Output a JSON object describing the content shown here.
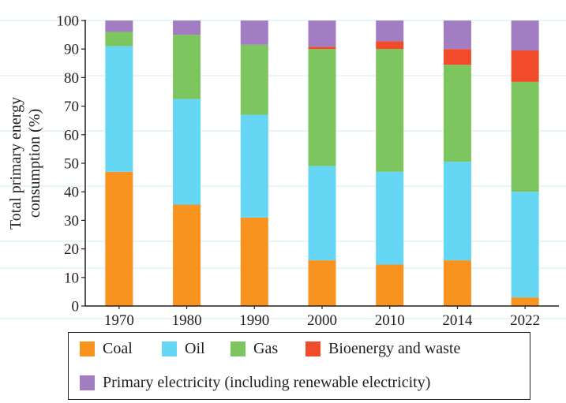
{
  "chart_data": {
    "type": "bar",
    "stacked": true,
    "categories": [
      "1970",
      "1980",
      "1990",
      "2000",
      "2010",
      "2014",
      "2022"
    ],
    "ylabel_lines": [
      "Total primary energy",
      "consumption (%)"
    ],
    "ylim": [
      0,
      100
    ],
    "yticks": [
      0,
      10,
      20,
      30,
      40,
      50,
      60,
      70,
      80,
      90,
      100
    ],
    "grid": false,
    "legend_position": "bottom",
    "series": [
      {
        "name": "Coal",
        "color": "#f7931e",
        "values": [
          47,
          35.5,
          31,
          16,
          14.5,
          16,
          3
        ]
      },
      {
        "name": "Oil",
        "color": "#66d6f5",
        "values": [
          44,
          37,
          36,
          33,
          32.5,
          34.5,
          37
        ]
      },
      {
        "name": "Gas",
        "color": "#7dc65f",
        "values": [
          5,
          22.5,
          24.5,
          41,
          43,
          34,
          38.5
        ]
      },
      {
        "name": "Bioenergy and waste",
        "color": "#f04b2a",
        "values": [
          0,
          0,
          0,
          0.8,
          2.7,
          5.5,
          11
        ]
      },
      {
        "name": "Primary electricity (including renewable electricity)",
        "color": "#a37dc2",
        "values": [
          4,
          5,
          8.5,
          9.2,
          7.3,
          10,
          10.5
        ]
      }
    ]
  }
}
